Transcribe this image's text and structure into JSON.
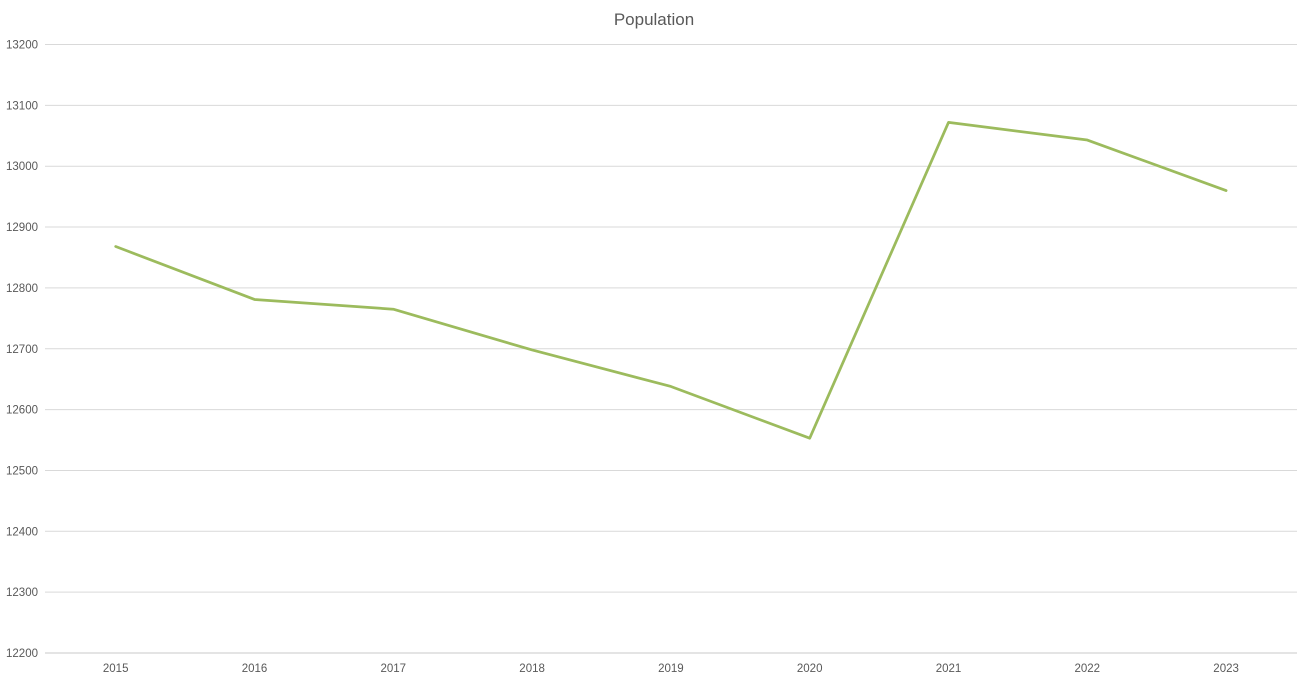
{
  "chart_data": {
    "type": "line",
    "title": "Population",
    "x": [
      2015,
      2016,
      2017,
      2018,
      2019,
      2020,
      2021,
      2022,
      2023
    ],
    "series": [
      {
        "name": "Population",
        "values": [
          12868,
          12781,
          12765,
          12698,
          12638,
          12553,
          13072,
          13043,
          12960
        ]
      }
    ],
    "xlabel": "",
    "ylabel": "",
    "ylim": [
      12200,
      13200
    ],
    "ytick_step": 100,
    "grid": true,
    "legend_position": "none",
    "colors": {
      "line": "#9CBB5D",
      "gridline": "#D9D9D9",
      "axis_line": "#C9C9C9",
      "text": "#595959",
      "background": "#FFFFFF"
    }
  }
}
